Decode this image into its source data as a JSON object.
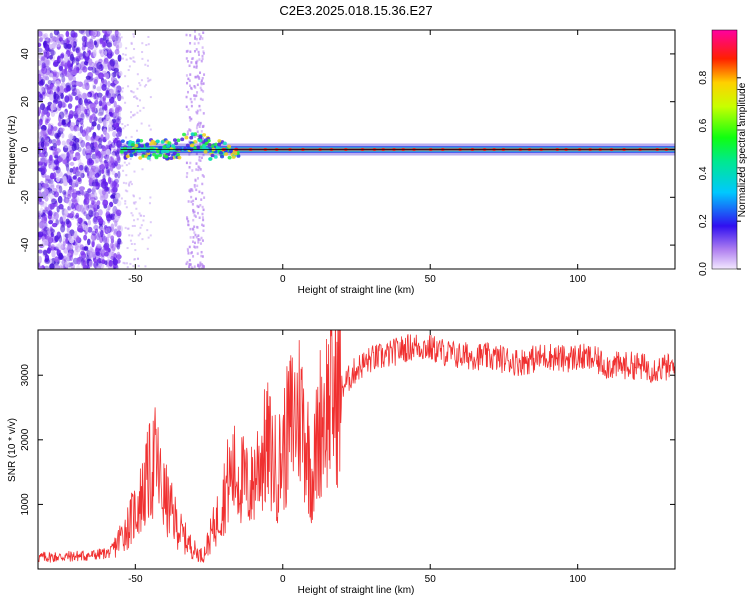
{
  "page_title": "C2E3.2025.018.15.36.E27",
  "colors": {
    "snr_line": "#f03030",
    "spectro_bg": "#ffffff",
    "spectro_scatter": "#8a3cf0",
    "spectro_core": "#e02040",
    "ref_line": "#000000"
  },
  "chart_data": [
    {
      "type": "heatmap",
      "title": "C2E3.2025.018.15.36.E27",
      "xlabel": "Height of straight line (km)",
      "ylabel": "Frequency (Hz)",
      "xlim": [
        -83,
        133
      ],
      "ylim": [
        -50,
        50
      ],
      "xticks": [
        -50,
        0,
        50,
        100
      ],
      "yticks": [
        -40,
        -20,
        0,
        20,
        40
      ],
      "colorbar": {
        "label": "Normalized spectral amplitude",
        "range": [
          0,
          1
        ],
        "ticks": [
          "0.0",
          "0.2",
          "0.4",
          "0.6",
          "0.8"
        ],
        "placement": "right"
      },
      "features": {
        "noise_region_x": [
          -83,
          -55
        ],
        "scatter_column_x": [
          -33,
          -27
        ],
        "carrier_frequency_hz": 0,
        "carrier_start_x": -55,
        "carrier_end_x": 133,
        "reference_line_hz": 0
      }
    },
    {
      "type": "line",
      "xlabel": "Height of straight line (km)",
      "ylabel": "SNR (10 * v/v)",
      "xlim": [
        -83,
        133
      ],
      "ylim": [
        0,
        3700
      ],
      "xticks": [
        -50,
        0,
        50,
        100
      ],
      "yticks": [
        1000,
        2000,
        3000
      ],
      "series": [
        {
          "x": [
            -83,
            -75,
            -65,
            -58,
            -55,
            -52,
            -48,
            -45,
            -43,
            -41,
            -38,
            -35,
            -32,
            -29,
            -27,
            -25,
            -22,
            -19,
            -17,
            -14,
            -11,
            -8,
            -5,
            -2,
            0,
            3,
            6,
            8,
            10,
            13,
            16,
            20,
            25,
            30,
            35,
            40,
            45,
            50,
            55,
            60,
            65,
            70,
            75,
            80,
            85,
            90,
            95,
            100,
            105,
            110,
            115,
            120,
            125,
            130,
            133
          ],
          "values": [
            180,
            190,
            210,
            260,
            500,
            700,
            1100,
            1500,
            1700,
            1200,
            900,
            600,
            400,
            250,
            200,
            450,
            800,
            1300,
            1500,
            1400,
            1200,
            1700,
            1900,
            1500,
            1800,
            2300,
            2500,
            2000,
            1400,
            2400,
            2600,
            2800,
            3100,
            3250,
            3300,
            3400,
            3450,
            3420,
            3350,
            3300,
            3300,
            3280,
            3250,
            3200,
            3250,
            3300,
            3250,
            3280,
            3250,
            3150,
            3150,
            3150,
            3100,
            3120,
            3100
          ]
        }
      ]
    }
  ]
}
